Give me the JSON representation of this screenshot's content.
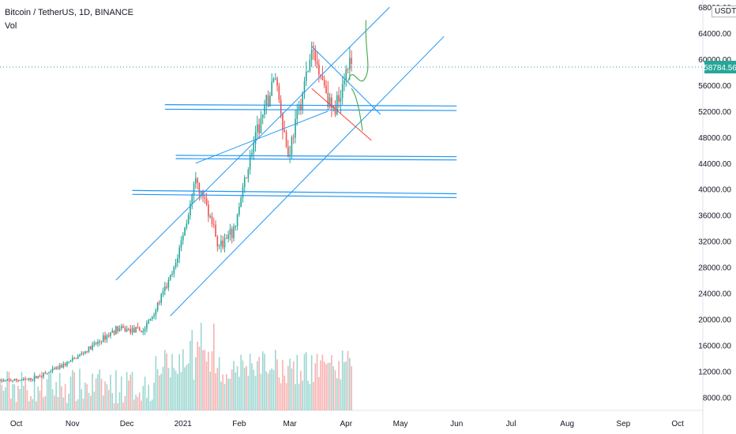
{
  "symbol_title": "Bitcoin / TetherUS, 1D, BINANCE",
  "volume_label": "Vol",
  "currency_unit": "USDT",
  "last_price_label": "58784.56",
  "colors": {
    "up": "#26a69a",
    "down": "#ef5350",
    "channel_line": "#2196f3",
    "support_line": "#2196f3",
    "red_line": "#f44336",
    "projection": "#4caf50",
    "price_line": "#26a69a",
    "axis_text": "#131722",
    "axis_border": "#e0e3eb"
  },
  "chart_data": {
    "type": "candlestick",
    "title": "Bitcoin / TetherUS, 1D, BINANCE",
    "x_axis": {
      "type": "date",
      "ticks": [
        {
          "label": "Oct",
          "date": "2020-10-01"
        },
        {
          "label": "Nov",
          "date": "2020-11-01"
        },
        {
          "label": "Dec",
          "date": "2020-12-01"
        },
        {
          "label": "2021",
          "date": "2021-01-01"
        },
        {
          "label": "Feb",
          "date": "2021-02-01"
        },
        {
          "label": "Mar",
          "date": "2021-03-01"
        },
        {
          "label": "Apr",
          "date": "2021-04-01"
        },
        {
          "label": "May",
          "date": "2021-05-01"
        },
        {
          "label": "Jun",
          "date": "2021-06-01"
        },
        {
          "label": "Jul",
          "date": "2021-07-01"
        },
        {
          "label": "Aug",
          "date": "2021-08-01"
        },
        {
          "label": "Sep",
          "date": "2021-09-01"
        },
        {
          "label": "Oct",
          "date": "2021-10-01"
        }
      ],
      "range": [
        "2020-09-22",
        "2021-10-14"
      ]
    },
    "y_axis": {
      "ticks": [
        {
          "label": "8000.00",
          "value": 8000
        },
        {
          "label": "12000.00",
          "value": 12000
        },
        {
          "label": "16000.00",
          "value": 16000
        },
        {
          "label": "20000.00",
          "value": 20000
        },
        {
          "label": "24000.00",
          "value": 24000
        },
        {
          "label": "28000.00",
          "value": 28000
        },
        {
          "label": "32000.00",
          "value": 32000
        },
        {
          "label": "36000.00",
          "value": 36000
        },
        {
          "label": "40000.00",
          "value": 40000
        },
        {
          "label": "44000.00",
          "value": 44000
        },
        {
          "label": "48000.00",
          "value": 48000
        },
        {
          "label": "52000.00",
          "value": 52000
        },
        {
          "label": "56000.00",
          "value": 56000
        },
        {
          "label": "60000.00",
          "value": 60000
        },
        {
          "label": "64000.00",
          "value": 64000
        },
        {
          "label": "68000.00",
          "value": 68000
        }
      ],
      "range": [
        5000,
        68500
      ]
    },
    "last_price": 58784.56,
    "price_anchors": [
      [
        "2020-09-22",
        10500
      ],
      [
        "2020-10-08",
        10700
      ],
      [
        "2020-10-20",
        11900
      ],
      [
        "2020-11-01",
        13700
      ],
      [
        "2020-11-12",
        15800
      ],
      [
        "2020-11-25",
        18500
      ],
      [
        "2020-12-10",
        18200
      ],
      [
        "2020-12-16",
        21000
      ],
      [
        "2020-12-27",
        27500
      ],
      [
        "2021-01-08",
        41000
      ],
      [
        "2021-01-14",
        37500
      ],
      [
        "2021-01-21",
        31000
      ],
      [
        "2021-01-29",
        33500
      ],
      [
        "2021-02-08",
        46000
      ],
      [
        "2021-02-21",
        57500
      ],
      [
        "2021-02-28",
        45000
      ],
      [
        "2021-03-13",
        61000
      ],
      [
        "2021-03-18",
        58000
      ],
      [
        "2021-03-25",
        51500
      ],
      [
        "2021-04-02",
        59500
      ],
      [
        "2021-04-04",
        58784
      ]
    ],
    "volume": {
      "max_value": 21000,
      "description": "daily volume bars, peak in early January 2021"
    },
    "drawings": {
      "channel_upper": [
        [
          "2020-11-25",
          26000
        ],
        [
          "2021-04-25",
          68000
        ]
      ],
      "channel_lower": [
        [
          "2020-12-25",
          20500
        ],
        [
          "2021-05-25",
          63500
        ]
      ],
      "channel_mid": [
        [
          "2021-01-08",
          44000
        ],
        [
          "2021-03-22",
          52000
        ]
      ],
      "support_lines": [
        {
          "from": [
            "2020-12-22",
            53000
          ],
          "to": [
            "2021-06-01",
            52800
          ]
        },
        {
          "from": [
            "2020-12-22",
            52300
          ],
          "to": [
            "2021-06-01",
            52100
          ]
        },
        {
          "from": [
            "2020-12-28",
            45200
          ],
          "to": [
            "2021-06-01",
            45000
          ]
        },
        {
          "from": [
            "2020-12-28",
            44700
          ],
          "to": [
            "2021-06-01",
            44500
          ]
        },
        {
          "from": [
            "2020-12-04",
            39800
          ],
          "to": [
            "2021-06-01",
            39300
          ]
        },
        {
          "from": [
            "2020-12-04",
            39200
          ],
          "to": [
            "2021-06-01",
            38700
          ]
        }
      ],
      "wedge_top": [
        [
          "2021-03-13",
          62000
        ],
        [
          "2021-04-20",
          51500
        ]
      ],
      "wedge_bottom_red": [
        [
          "2021-03-13",
          55500
        ],
        [
          "2021-04-15",
          47500
        ]
      ],
      "projection_up": [
        [
          "2021-04-02",
          56500
        ],
        [
          "2021-04-12",
          66000
        ]
      ],
      "projection_down": [
        [
          "2021-04-04",
          55500
        ],
        [
          "2021-04-10",
          49000
        ]
      ]
    }
  }
}
